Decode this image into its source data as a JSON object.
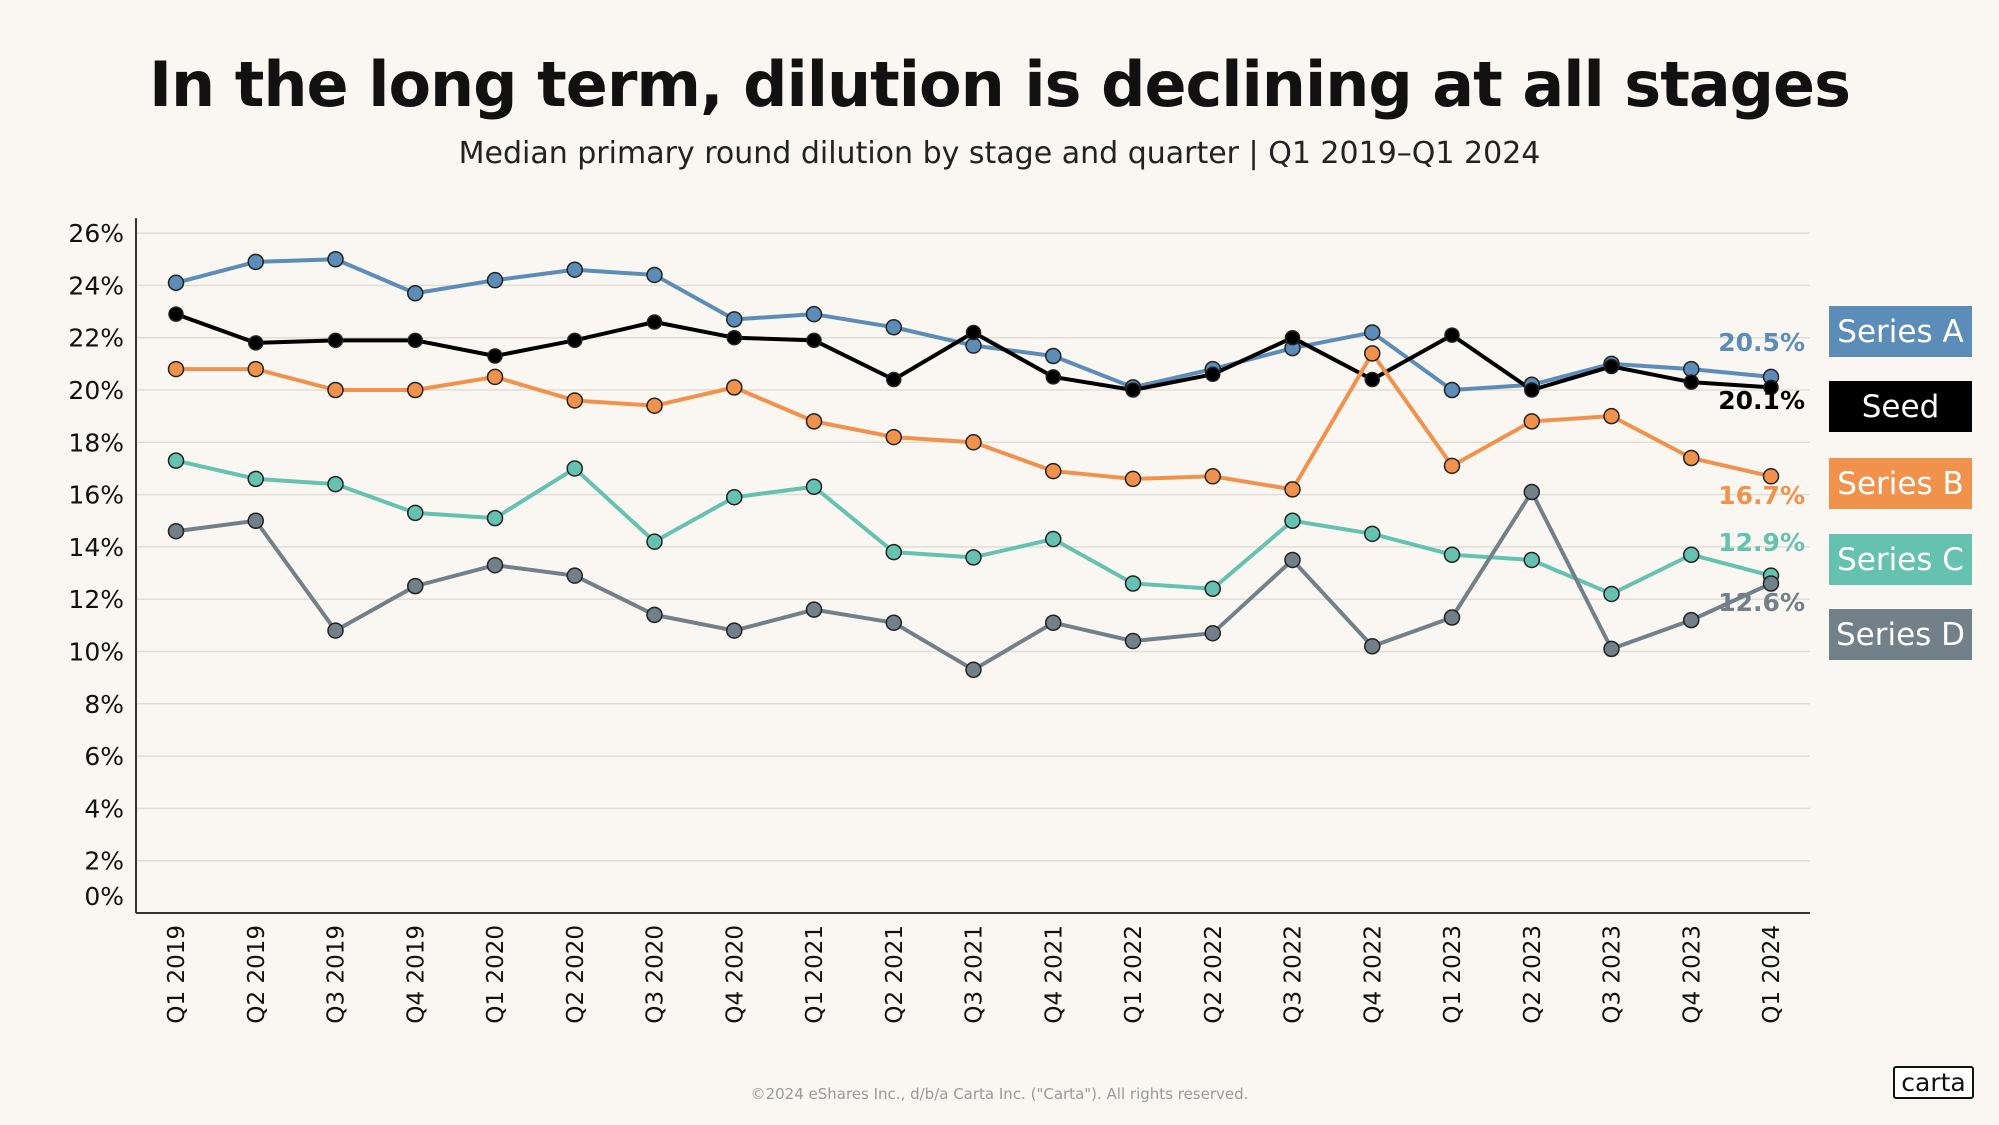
{
  "title": "In the long term, dilution is declining at all stages",
  "subtitle": "Median primary round dilution by stage and quarter | Q1 2019–Q1 2024",
  "footer": "©2024 eShares Inc., d/b/a Carta Inc. (\"Carta\"). All rights reserved.",
  "logo": "carta",
  "chart_data": {
    "type": "line",
    "title": "In the long term, dilution is declining at all stages",
    "subtitle": "Median primary round dilution by stage and quarter | Q1 2019–Q1 2024",
    "ylim": [
      0,
      26
    ],
    "yticks": [
      "0%",
      "2%",
      "4%",
      "6%",
      "8%",
      "10%",
      "12%",
      "14%",
      "16%",
      "18%",
      "20%",
      "22%",
      "24%",
      "26%"
    ],
    "grid": true,
    "legend": "right",
    "categories": [
      "Q1 2019",
      "Q2 2019",
      "Q3 2019",
      "Q4 2019",
      "Q1 2020",
      "Q2 2020",
      "Q3 2020",
      "Q4 2020",
      "Q1 2021",
      "Q2 2021",
      "Q3 2021",
      "Q4 2021",
      "Q1 2022",
      "Q2 2022",
      "Q3 2022",
      "Q4 2022",
      "Q1 2023",
      "Q2 2023",
      "Q3 2023",
      "Q4 2023",
      "Q1 2024"
    ],
    "series": [
      {
        "name": "Series A",
        "color": "#5b8db8",
        "end_label": "20.5%",
        "values": [
          24.1,
          24.9,
          25.0,
          23.7,
          24.2,
          24.6,
          24.4,
          22.7,
          22.9,
          22.4,
          21.7,
          21.3,
          20.1,
          20.8,
          21.6,
          22.2,
          20.0,
          20.2,
          21.0,
          20.8,
          20.5
        ]
      },
      {
        "name": "Seed",
        "color": "#000000",
        "end_label": "20.1%",
        "values": [
          22.9,
          21.8,
          21.9,
          21.9,
          21.3,
          21.9,
          22.6,
          22.0,
          21.9,
          20.4,
          22.2,
          20.5,
          20.0,
          20.6,
          22.0,
          20.4,
          22.1,
          20.0,
          20.9,
          20.3,
          20.1
        ]
      },
      {
        "name": "Series B",
        "color": "#f0924c",
        "end_label": "16.7%",
        "values": [
          20.8,
          20.8,
          20.0,
          20.0,
          20.5,
          19.6,
          19.4,
          20.1,
          18.8,
          18.2,
          18.0,
          16.9,
          16.6,
          16.7,
          16.2,
          21.4,
          17.1,
          18.8,
          19.0,
          17.4,
          16.7
        ]
      },
      {
        "name": "Series C",
        "color": "#66c2b0",
        "end_label": "12.9%",
        "values": [
          17.3,
          16.6,
          16.4,
          15.3,
          15.1,
          17.0,
          14.2,
          15.9,
          16.3,
          13.8,
          13.6,
          14.3,
          12.6,
          12.4,
          15.0,
          14.5,
          13.7,
          13.5,
          12.2,
          13.7,
          12.9
        ]
      },
      {
        "name": "Series D",
        "color": "#718089",
        "end_label": "12.6%",
        "values": [
          14.6,
          15.0,
          10.8,
          12.5,
          13.3,
          12.9,
          11.4,
          10.8,
          11.6,
          11.1,
          9.3,
          11.1,
          10.4,
          10.7,
          13.5,
          10.2,
          11.3,
          16.1,
          10.1,
          11.2,
          12.6
        ]
      }
    ]
  }
}
